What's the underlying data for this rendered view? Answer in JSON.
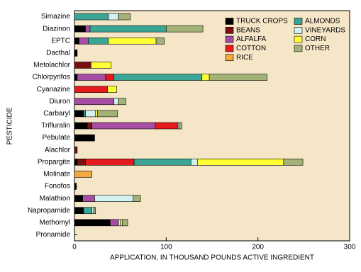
{
  "chart_data": {
    "type": "stacked-bar-horizontal",
    "x_label": "APPLICATION, IN THOUSAND POUNDS ACTIVE INGREDIENT",
    "y_label": "PESTICIDE",
    "categories": [
      "Simazine",
      "Diazinon",
      "EPTC",
      "Dacthal",
      "Metolachlor",
      "Chlorpyrifos",
      "Cyanazine",
      "Diuron",
      "Carbaryl",
      "Trifluralin",
      "Pebulate",
      "Alachlor",
      "Propargite",
      "Molinate",
      "Fonofos",
      "Malathion",
      "Napropamide",
      "Methomyl",
      "Pronamide"
    ],
    "series": [
      {
        "name": "TRUCK CROPS",
        "color": "#000000",
        "values": [
          0,
          12,
          5,
          3,
          0,
          3,
          0,
          0,
          10,
          14,
          22,
          0,
          3,
          0,
          2,
          9,
          10,
          39,
          0
        ]
      },
      {
        "name": "BEANS",
        "color": "#7a1010",
        "values": [
          0,
          0,
          0,
          0,
          18,
          0,
          0,
          0,
          0,
          5,
          0,
          3,
          9,
          0,
          0,
          0,
          0,
          0,
          0
        ]
      },
      {
        "name": "ALFALFA",
        "color": "#a64ea6",
        "values": [
          0,
          5,
          10,
          0,
          0,
          31,
          0,
          43,
          0,
          69,
          0,
          0,
          0,
          0,
          0,
          13,
          0,
          9,
          0
        ]
      },
      {
        "name": "COTTON",
        "color": "#e41a1c",
        "values": [
          0,
          0,
          0,
          0,
          0,
          9,
          36,
          0,
          0,
          25,
          0,
          0,
          53,
          0,
          0,
          0,
          0,
          0,
          0
        ]
      },
      {
        "name": "RICE",
        "color": "#f5a742",
        "values": [
          0,
          0,
          0,
          0,
          0,
          0,
          0,
          0,
          0,
          0,
          0,
          0,
          0,
          19,
          0,
          0,
          0,
          0,
          0
        ]
      },
      {
        "name": "ALMONDS",
        "color": "#3aa595",
        "values": [
          37,
          83,
          22,
          0,
          0,
          96,
          0,
          0,
          2,
          0,
          0,
          0,
          62,
          0,
          0,
          0,
          9,
          0,
          0
        ]
      },
      {
        "name": "VINEYARDS",
        "color": "#d4f0f0",
        "values": [
          11,
          0,
          0,
          0,
          0,
          0,
          0,
          5,
          11,
          2,
          0,
          0,
          7,
          0,
          0,
          42,
          2,
          2,
          0
        ]
      },
      {
        "name": "CORN",
        "color": "#ffff33",
        "values": [
          0,
          0,
          52,
          0,
          22,
          8,
          10,
          0,
          2,
          0,
          0,
          0,
          94,
          0,
          0,
          0,
          0,
          2,
          0
        ]
      },
      {
        "name": "OTHER",
        "color": "#a3b377",
        "values": [
          13,
          40,
          9,
          0,
          0,
          63,
          0,
          8,
          22,
          2,
          0,
          0,
          21,
          0,
          0,
          8,
          2,
          6,
          0
        ]
      }
    ],
    "xlim": [
      0,
      300
    ],
    "xticks": [
      0,
      100,
      200,
      300
    ]
  }
}
